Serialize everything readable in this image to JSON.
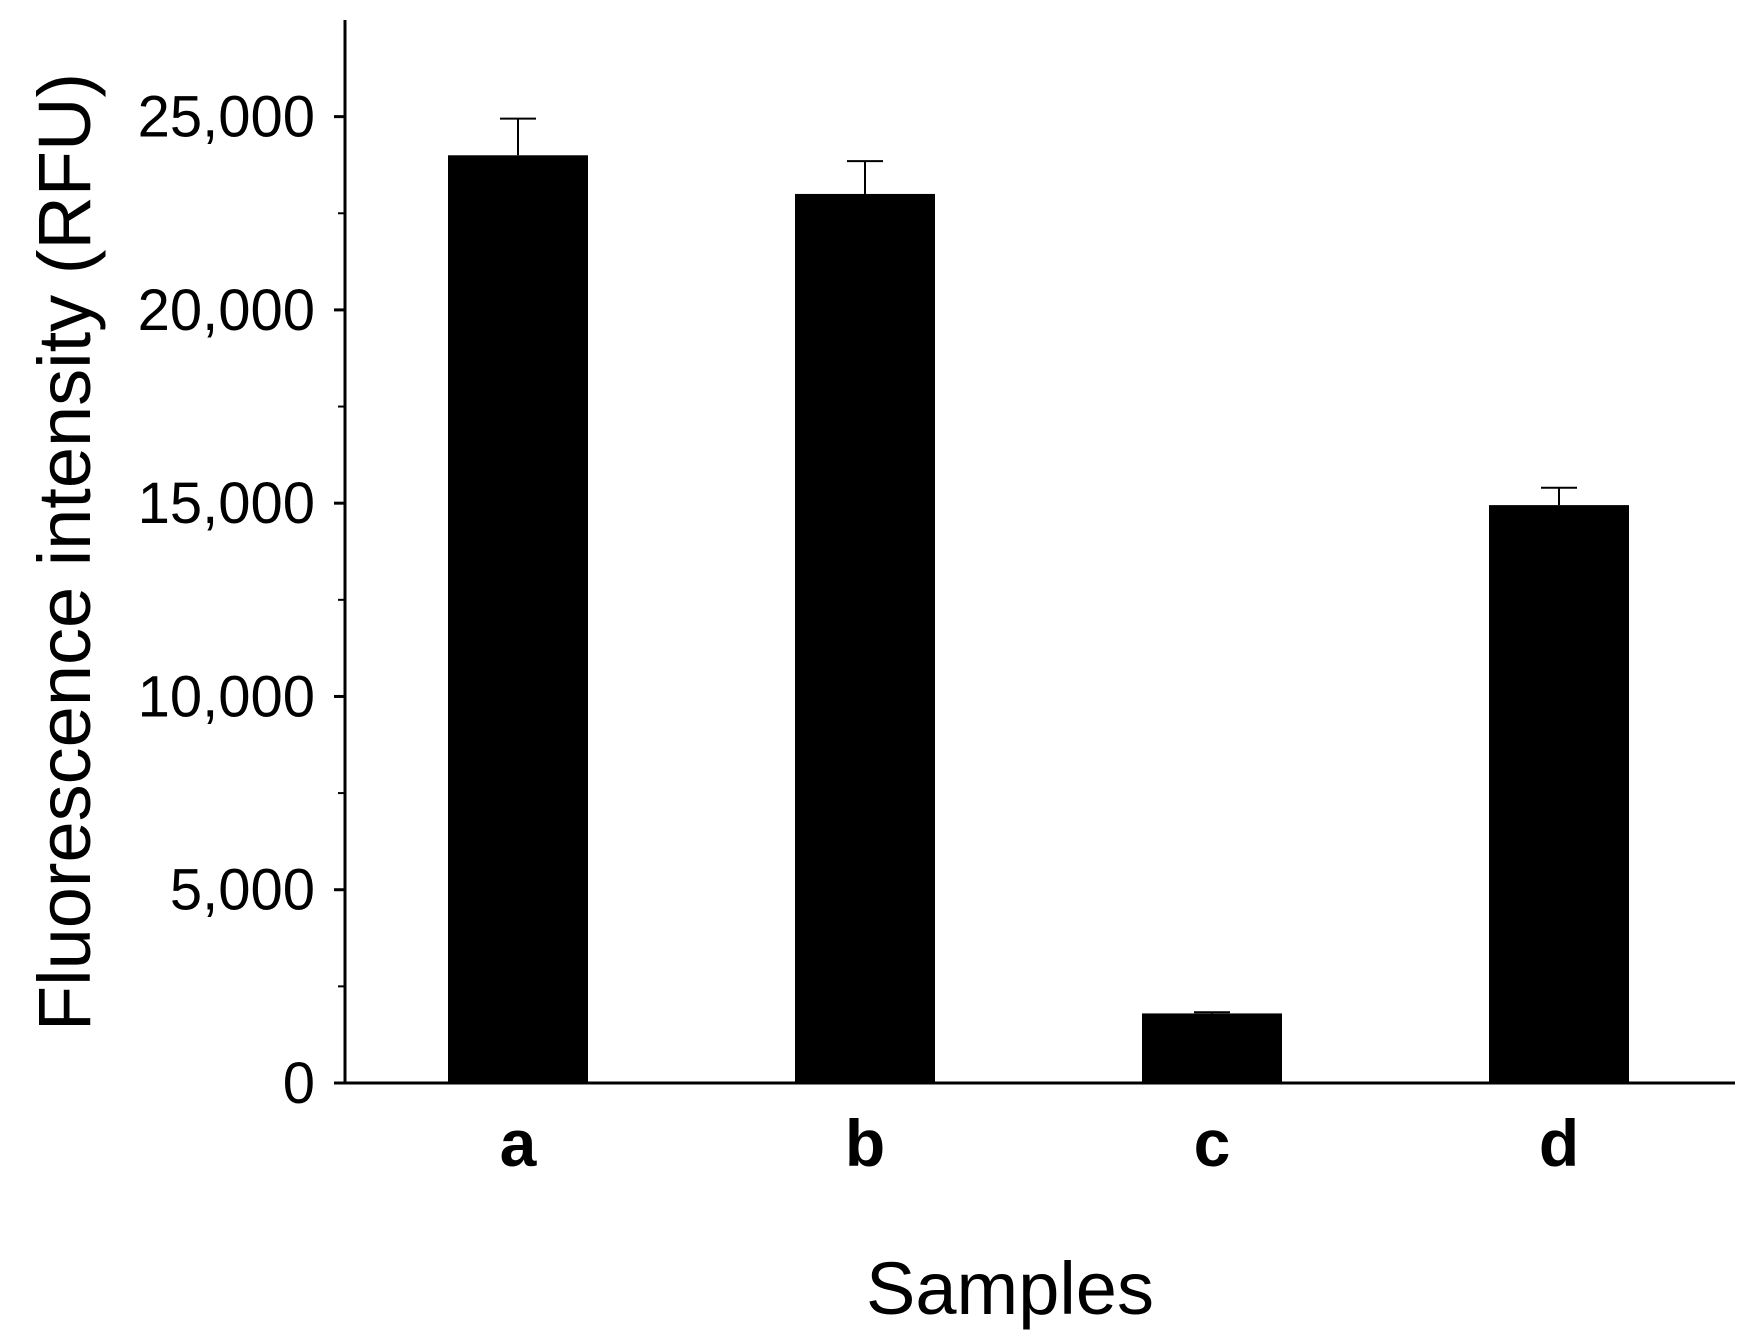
{
  "chart_data": {
    "type": "bar",
    "title": "",
    "xlabel": "Samples",
    "ylabel": "Fluorescence intensity (RFU)",
    "categories": [
      "a",
      "b",
      "c",
      "d"
    ],
    "values": [
      24000,
      23000,
      1800,
      14950
    ],
    "errors": [
      950,
      850,
      30,
      450
    ],
    "ylim": [
      0,
      27500
    ],
    "yticks": [
      0,
      5000,
      10000,
      15000,
      20000,
      25000
    ],
    "ytick_labels": [
      "0",
      "5,000",
      "10,000",
      "15,000",
      "20,000",
      "25,000"
    ],
    "y_minor_ticks": [
      2500,
      7500,
      12500,
      17500,
      22500
    ],
    "grid": false,
    "bar_color": "#000000"
  }
}
